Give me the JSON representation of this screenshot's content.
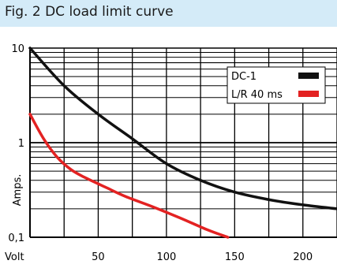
{
  "chart_data": {
    "type": "line",
    "title": "Fig. 2 DC load limit curve",
    "xlabel": "Volt",
    "ylabel": "Amps.",
    "xlim": [
      0,
      225
    ],
    "ylim": [
      0.1,
      10
    ],
    "yscale": "log",
    "grid": true,
    "legend_position": "top-right",
    "x_ticks": [
      50,
      100,
      150,
      200
    ],
    "x_tick_labels": [
      "50",
      "100",
      "150",
      "200"
    ],
    "y_ticks": [
      0.1,
      1,
      10
    ],
    "y_tick_labels": [
      "0,1",
      "1",
      "10"
    ],
    "series": [
      {
        "name": "DC-1",
        "color": "#111111",
        "x": [
          0,
          25,
          50,
          75,
          100,
          125,
          150,
          175,
          200,
          225
        ],
        "y": [
          10,
          4.0,
          2.0,
          1.1,
          0.6,
          0.4,
          0.3,
          0.25,
          0.22,
          0.2
        ]
      },
      {
        "name": "L/R 40 ms",
        "color": "#e32222",
        "x": [
          0,
          10,
          20,
          30,
          40,
          55,
          70,
          90,
          110,
          130,
          145
        ],
        "y": [
          2.0,
          1.1,
          0.7,
          0.52,
          0.43,
          0.34,
          0.27,
          0.21,
          0.16,
          0.12,
          0.1
        ]
      }
    ]
  }
}
